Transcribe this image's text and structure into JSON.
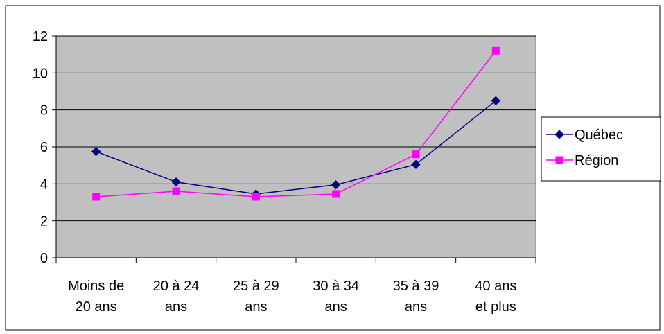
{
  "chart_data": {
    "type": "line",
    "categories": [
      [
        "Moins de",
        "20 ans"
      ],
      [
        "20 à 24",
        "ans"
      ],
      [
        "25 à 29",
        "ans"
      ],
      [
        "30 à 34",
        "ans"
      ],
      [
        "35 à 39",
        "ans"
      ],
      [
        "40 ans",
        "et plus"
      ]
    ],
    "series": [
      {
        "name": "Québec",
        "values": [
          5.75,
          4.1,
          3.45,
          3.95,
          5.05,
          8.5
        ],
        "color": "#000080",
        "marker": "diamond"
      },
      {
        "name": "Région",
        "values": [
          3.3,
          3.6,
          3.3,
          3.45,
          5.6,
          11.2
        ],
        "color": "#ff00ff",
        "marker": "square"
      }
    ],
    "ylim": [
      0,
      12
    ],
    "yticks": [
      0,
      2,
      4,
      6,
      8,
      10,
      12
    ],
    "grid": true,
    "plot_background": "#c0c0c0",
    "legend_position": "right"
  }
}
